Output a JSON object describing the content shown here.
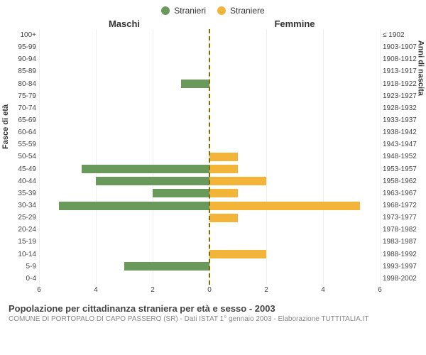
{
  "legend": {
    "items": [
      {
        "label": "Stranieri",
        "color": "#6a9a5b"
      },
      {
        "label": "Straniere",
        "color": "#f2b53a"
      }
    ]
  },
  "headers": {
    "left": "Maschi",
    "right": "Femmine"
  },
  "chart": {
    "type": "pyramid-bar",
    "male_color": "#6a9a5b",
    "female_color": "#f2b53a",
    "background": "#ffffff",
    "grid_color": "#eeeeee",
    "centerline_color": "#806c00",
    "xmax": 6,
    "x_ticks": [
      6,
      4,
      2,
      0,
      2,
      4,
      6
    ],
    "rows": [
      {
        "age": "100+",
        "birth": "≤ 1902",
        "m": 0,
        "f": 0
      },
      {
        "age": "95-99",
        "birth": "1903-1907",
        "m": 0,
        "f": 0
      },
      {
        "age": "90-94",
        "birth": "1908-1912",
        "m": 0,
        "f": 0
      },
      {
        "age": "85-89",
        "birth": "1913-1917",
        "m": 0,
        "f": 0
      },
      {
        "age": "80-84",
        "birth": "1918-1922",
        "m": 1,
        "f": 0
      },
      {
        "age": "75-79",
        "birth": "1923-1927",
        "m": 0,
        "f": 0
      },
      {
        "age": "70-74",
        "birth": "1928-1932",
        "m": 0,
        "f": 0
      },
      {
        "age": "65-69",
        "birth": "1933-1937",
        "m": 0,
        "f": 0
      },
      {
        "age": "60-64",
        "birth": "1938-1942",
        "m": 0,
        "f": 0
      },
      {
        "age": "55-59",
        "birth": "1943-1947",
        "m": 0,
        "f": 0
      },
      {
        "age": "50-54",
        "birth": "1948-1952",
        "m": 0,
        "f": 1
      },
      {
        "age": "45-49",
        "birth": "1953-1957",
        "m": 4.5,
        "f": 1
      },
      {
        "age": "40-44",
        "birth": "1958-1962",
        "m": 4,
        "f": 2
      },
      {
        "age": "35-39",
        "birth": "1963-1967",
        "m": 2,
        "f": 1
      },
      {
        "age": "30-34",
        "birth": "1968-1972",
        "m": 5.3,
        "f": 5.3
      },
      {
        "age": "25-29",
        "birth": "1973-1977",
        "m": 0,
        "f": 1
      },
      {
        "age": "20-24",
        "birth": "1978-1982",
        "m": 0,
        "f": 0
      },
      {
        "age": "15-19",
        "birth": "1983-1987",
        "m": 0,
        "f": 0
      },
      {
        "age": "10-14",
        "birth": "1988-1992",
        "m": 0,
        "f": 2
      },
      {
        "age": "5-9",
        "birth": "1993-1997",
        "m": 3,
        "f": 0
      },
      {
        "age": "0-4",
        "birth": "1998-2002",
        "m": 0,
        "f": 0
      }
    ],
    "y_title_left": "Fasce di età",
    "y_title_right": "Anni di nascita"
  },
  "footer": {
    "title": "Popolazione per cittadinanza straniera per età e sesso - 2003",
    "sub": "COMUNE DI PORTOPALO DI CAPO PASSERO (SR) - Dati ISTAT 1° gennaio 2003 - Elaborazione TUTTITALIA.IT"
  }
}
